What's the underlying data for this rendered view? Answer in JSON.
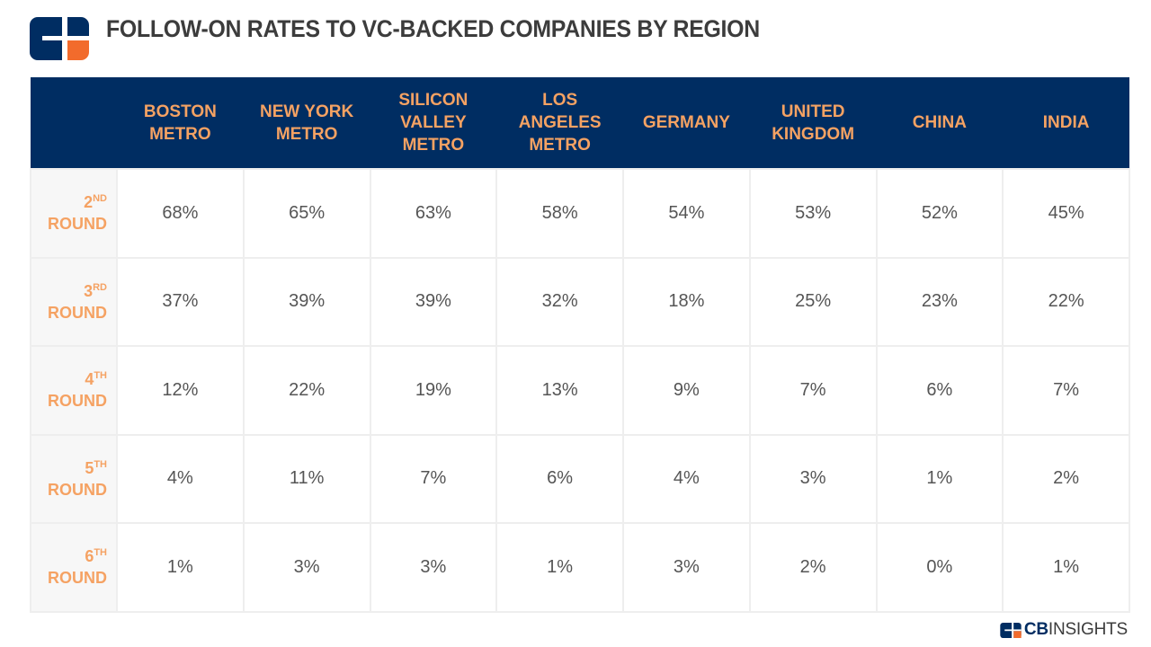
{
  "title": "FOLLOW-ON RATES TO VC-BACKED COMPANIES BY REGION",
  "brand": {
    "bold": "CB",
    "rest": "INSIGHTS"
  },
  "colors": {
    "header_bg": "#002d62",
    "accent": "#f5a263",
    "logo_orange": "#f26b2c",
    "cell_border": "#eeeeee",
    "value_text": "#555555"
  },
  "icons": {
    "logo": "cb-insights-logo-icon"
  },
  "chart_data": {
    "type": "table",
    "title": "FOLLOW-ON RATES TO VC-BACKED COMPANIES BY REGION",
    "columns": [
      "BOSTON\nMETRO",
      "NEW YORK\nMETRO",
      "SILICON\nVALLEY\nMETRO",
      "LOS\nANGELES\nMETRO",
      "GERMANY",
      "UNITED\nKINGDOM",
      "CHINA",
      "INDIA"
    ],
    "rows": [
      {
        "num": "2",
        "suffix": "ND",
        "word": "ROUND",
        "values": [
          "68%",
          "65%",
          "63%",
          "58%",
          "54%",
          "53%",
          "52%",
          "45%"
        ]
      },
      {
        "num": "3",
        "suffix": "RD",
        "word": "ROUND",
        "values": [
          "37%",
          "39%",
          "39%",
          "32%",
          "18%",
          "25%",
          "23%",
          "22%"
        ]
      },
      {
        "num": "4",
        "suffix": "TH",
        "word": "ROUND",
        "values": [
          "12%",
          "22%",
          "19%",
          "13%",
          "9%",
          "7%",
          "6%",
          "7%"
        ]
      },
      {
        "num": "5",
        "suffix": "TH",
        "word": "ROUND",
        "values": [
          "4%",
          "11%",
          "7%",
          "6%",
          "4%",
          "3%",
          "1%",
          "2%"
        ]
      },
      {
        "num": "6",
        "suffix": "TH",
        "word": "ROUND",
        "values": [
          "1%",
          "3%",
          "3%",
          "1%",
          "3%",
          "2%",
          "0%",
          "1%"
        ]
      }
    ]
  }
}
